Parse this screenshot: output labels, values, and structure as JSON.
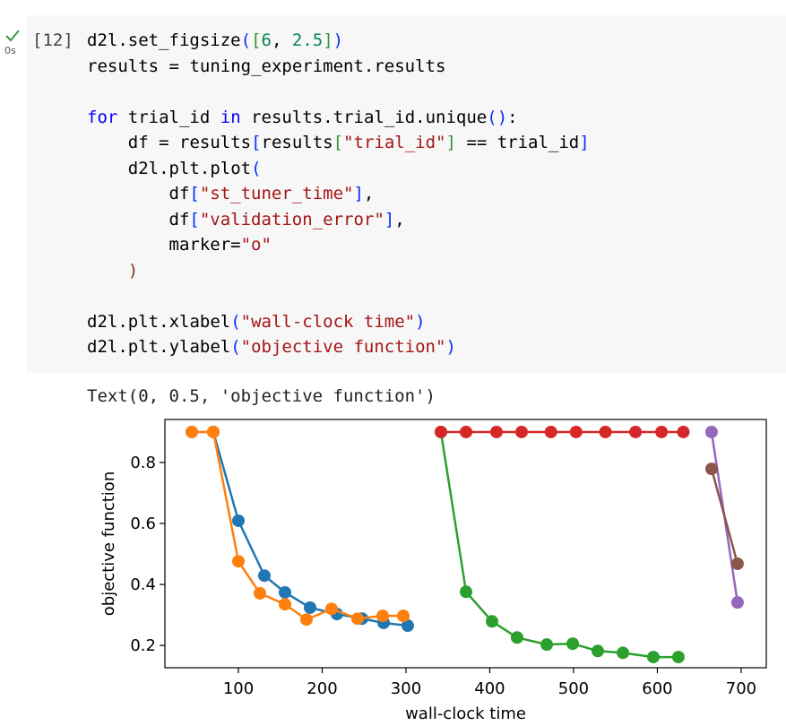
{
  "cell": {
    "status": "0s",
    "exec_count": "[12]",
    "code_blocks": [
      [
        "d2l.set_figsize([6, 2.5])",
        "results = tuning_experiment.results"
      ],
      [
        "for trial_id in results.trial_id.unique():",
        "    df = results[results[\"trial_id\"] == trial_id]",
        "    d2l.plt.plot(",
        "        df[\"st_tuner_time\"],",
        "        df[\"validation_error\"],",
        "        marker=\"o\"",
        "    )"
      ],
      [
        "d2l.plt.xlabel(\"wall-clock time\")",
        "d2l.plt.ylabel(\"objective function\")"
      ]
    ],
    "output_text": "Text(0, 0.5, 'objective function')"
  },
  "chart_data": {
    "type": "line",
    "x_label": "wall-clock time",
    "y_label": "objective function",
    "xlim": [
      12.3,
      730
    ],
    "ylim": [
      0.127,
      0.941
    ],
    "xticks": [
      100,
      200,
      300,
      400,
      500,
      600,
      700
    ],
    "yticks": [
      0.2,
      0.4,
      0.6,
      0.8
    ],
    "marker": "o",
    "series": [
      {
        "color": "#1f77b4",
        "x": [
          44.4,
          70.1,
          100,
          131,
          155.6,
          185.6,
          217.6,
          247.6,
          273.3,
          302.1
        ],
        "values": [
          0.9,
          0.9,
          0.609,
          0.429,
          0.374,
          0.324,
          0.303,
          0.288,
          0.274,
          0.265
        ]
      },
      {
        "color": "#ff7f0e",
        "x": [
          44.4,
          70.1,
          100,
          125.7,
          155.6,
          181.3,
          211.2,
          242.2,
          272.2,
          296.8
        ],
        "values": [
          0.9,
          0.9,
          0.476,
          0.371,
          0.335,
          0.285,
          0.32,
          0.288,
          0.297,
          0.297
        ]
      },
      {
        "color": "#2ca02c",
        "x": [
          341.7,
          371.7,
          402.7,
          432.6,
          468,
          499,
          528.9,
          558.9,
          595.2,
          625.1
        ],
        "values": [
          0.9,
          0.376,
          0.279,
          0.226,
          0.203,
          0.206,
          0.182,
          0.176,
          0.162,
          0.162
        ]
      },
      {
        "color": "#d62728",
        "x": [
          341.7,
          371.7,
          408,
          438,
          473,
          503,
          538,
          574,
          605,
          631
        ],
        "values": [
          0.9,
          0.9,
          0.9,
          0.9,
          0.9,
          0.9,
          0.9,
          0.9,
          0.9,
          0.9
        ]
      },
      {
        "color": "#9467bd",
        "x": [
          664.7,
          695.7
        ],
        "values": [
          0.9,
          0.341
        ]
      },
      {
        "color": "#8c564b",
        "x": [
          664.7,
          695.7
        ],
        "values": [
          0.779,
          0.468
        ]
      }
    ]
  }
}
